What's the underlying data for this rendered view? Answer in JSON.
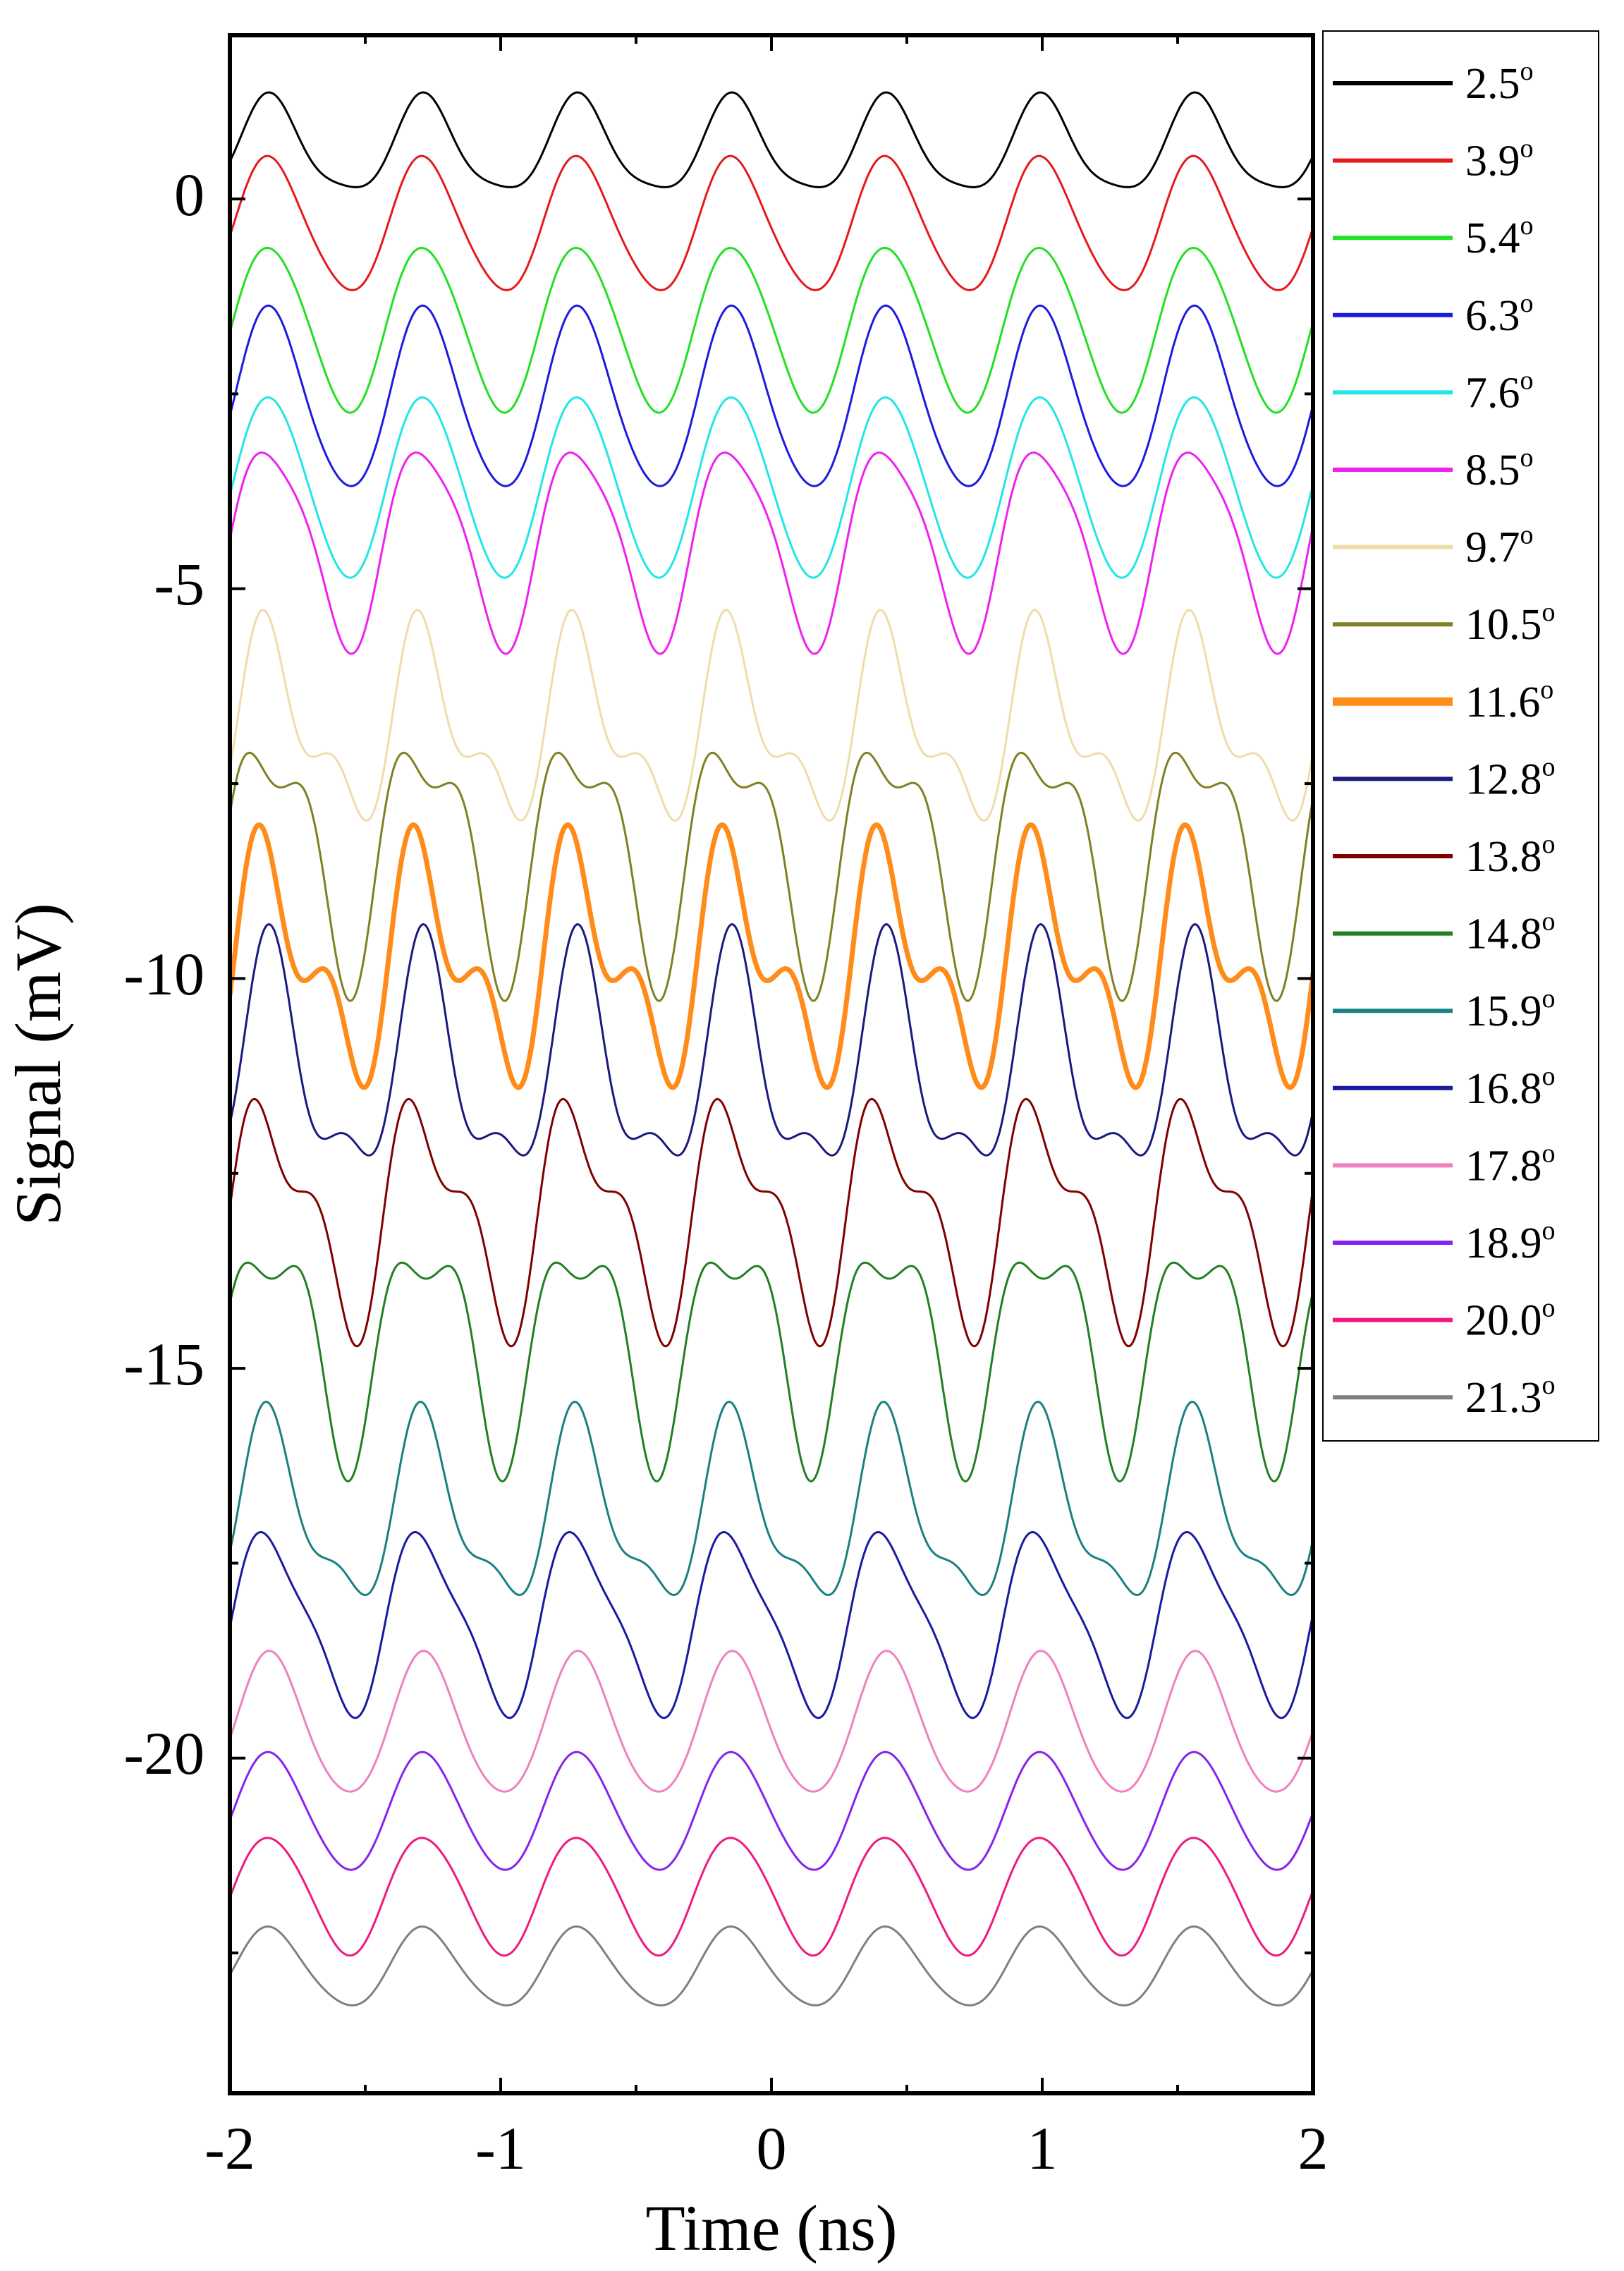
{
  "chart_data": {
    "type": "line",
    "xlabel": "Time (ns)",
    "ylabel": "Signal (mV)",
    "xlim": [
      -2,
      2
    ],
    "ylim": [
      -24.3,
      2.1
    ],
    "xticks": [
      -2,
      -1,
      0,
      1,
      2
    ],
    "xtick_labels": [
      "-2",
      "-1",
      "0",
      "1",
      "2"
    ],
    "yticks": [
      0,
      -5,
      -10,
      -15,
      -20
    ],
    "ytick_labels": [
      "0",
      "-5",
      "-10",
      "-15",
      "-20"
    ],
    "legend_position": "right, outside plot",
    "degree_symbol": "o",
    "series": [
      {
        "name": "2.5",
        "color": "#000000",
        "offset": 0.65,
        "amp": 0.6,
        "harm": 0.12,
        "harm_phase": 0.3,
        "width": 3
      },
      {
        "name": "3.9",
        "color": "#e41a1c",
        "offset": -0.35,
        "amp": 0.85,
        "harm": 0.08,
        "harm_phase": 1.0,
        "width": 3
      },
      {
        "name": "5.4",
        "color": "#22e022",
        "offset": -1.65,
        "amp": 1.05,
        "harm": 0.07,
        "harm_phase": 2.1,
        "width": 3
      },
      {
        "name": "6.3",
        "color": "#1c1ce0",
        "offset": -2.6,
        "amp": 1.15,
        "harm": 0.1,
        "harm_phase": 0.7,
        "width": 3
      },
      {
        "name": "7.6",
        "color": "#22e6e6",
        "offset": -3.7,
        "amp": 1.15,
        "harm": 0.06,
        "harm_phase": 1.6,
        "width": 3
      },
      {
        "name": "8.5",
        "color": "#ee22ee",
        "offset": -4.4,
        "amp": 1.25,
        "harm": 0.22,
        "harm_phase": 2.4,
        "width": 3
      },
      {
        "name": "9.7",
        "color": "#f0dcaa",
        "offset": -6.8,
        "amp": 1.05,
        "harm": 0.55,
        "harm_phase": 0.9,
        "width": 3
      },
      {
        "name": "10.5",
        "color": "#808022",
        "offset": -8.3,
        "amp": 1.4,
        "harm": 0.6,
        "harm_phase": 2.8,
        "width": 3
      },
      {
        "name": "11.6",
        "color": "#ff8c1a",
        "offset": -9.8,
        "amp": 1.2,
        "harm": 0.75,
        "harm_phase": 1.3,
        "width": 7
      },
      {
        "name": "12.8",
        "color": "#1a1a80",
        "offset": -11.2,
        "amp": 1.35,
        "harm": 0.55,
        "harm_phase": 0.2,
        "width": 3
      },
      {
        "name": "13.8",
        "color": "#800000",
        "offset": -13.0,
        "amp": 1.25,
        "harm": 0.6,
        "harm_phase": 2.0,
        "width": 3
      },
      {
        "name": "14.8",
        "color": "#228022",
        "offset": -14.6,
        "amp": 1.3,
        "harm": 0.55,
        "harm_phase": 3.1,
        "width": 3
      },
      {
        "name": "15.9",
        "color": "#1a8080",
        "offset": -16.9,
        "amp": 1.1,
        "harm": 0.4,
        "harm_phase": 0.6,
        "width": 3
      },
      {
        "name": "16.8",
        "color": "#1a1aa0",
        "offset": -18.25,
        "amp": 1.1,
        "harm": 0.25,
        "harm_phase": 1.8,
        "width": 3
      },
      {
        "name": "17.8",
        "color": "#f080c0",
        "offset": -19.6,
        "amp": 0.9,
        "harm": 0.08,
        "harm_phase": 0.4,
        "width": 3
      },
      {
        "name": "18.9",
        "color": "#8822ee",
        "offset": -20.7,
        "amp": 0.75,
        "harm": 0.05,
        "harm_phase": 1.1,
        "width": 3
      },
      {
        "name": "20.0",
        "color": "#ee1a80",
        "offset": -21.75,
        "amp": 0.75,
        "harm": 0.05,
        "harm_phase": 2.2,
        "width": 3
      },
      {
        "name": "21.3",
        "color": "#808080",
        "offset": -22.7,
        "amp": 0.5,
        "harm": 0.05,
        "harm_phase": 0.8,
        "width": 3
      }
    ],
    "period_ns": 0.57,
    "phase_ns": -1.85
  }
}
